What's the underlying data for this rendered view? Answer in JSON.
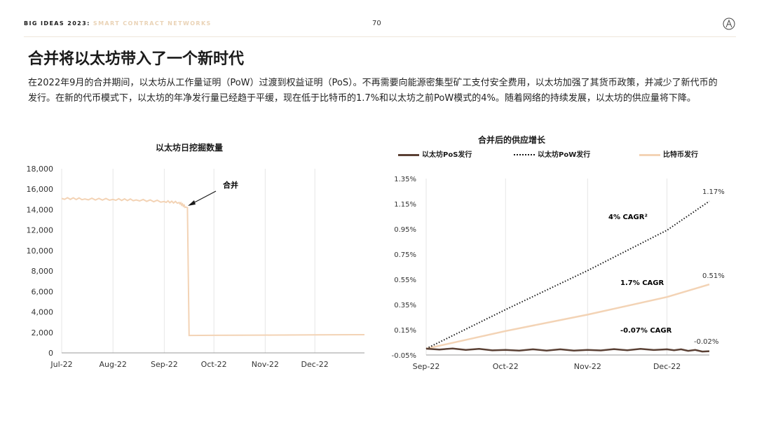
{
  "header": {
    "brand": "BIG IDEAS 2023:",
    "section": "SMART CONTRACT NETWORKS",
    "page_number": "70",
    "logo_icon": "ark-logo-icon"
  },
  "title": "合并将以太坊带入了一个新时代",
  "body": "在2022年9月的合并期间，以太坊从工作量证明（PoW）过渡到权益证明（PoS）。不再需要向能源密集型矿工支付安全费用，以太坊加强了其货币政策，并减少了新代币的发行。在新的代币模式下，以太坊的年净发行量已经趋于平缓，现在低于比特币的1.7%和以太坊之前PoW模式的4%。随着网络的持续发展，以太坊的供应量将下降。",
  "colors": {
    "accent": "#f3d3b5",
    "pos": "#5a4034",
    "pow": "#1a1a1a",
    "grid": "#e6e6e6"
  },
  "chart_data": [
    {
      "type": "line",
      "title": "以太坊日挖掘数量",
      "x": [
        "2022-07-01",
        "2022-07-15",
        "2022-08-01",
        "2022-08-15",
        "2022-09-01",
        "2022-09-10",
        "2022-09-14",
        "2022-09-15",
        "2022-09-16",
        "2022-10-01",
        "2022-11-01",
        "2022-12-01",
        "2022-12-31"
      ],
      "series": [
        {
          "values": [
            15100,
            15050,
            15000,
            14950,
            14800,
            14700,
            14250,
            14200,
            1700,
            1720,
            1740,
            1760,
            1780
          ]
        }
      ],
      "x_ticks": [
        "Jul-22",
        "Aug-22",
        "Sep-22",
        "Oct-22",
        "Nov-22",
        "Dec-22"
      ],
      "y_ticks": [
        "0",
        "2,000",
        "4,000",
        "6,000",
        "8,000",
        "10,000",
        "12,000",
        "14,000",
        "16,000",
        "18,000"
      ],
      "ylim": [
        0,
        18000
      ],
      "annotation": "合并",
      "grid": "vertical"
    },
    {
      "type": "line",
      "title": "合并后的供应增长",
      "legend": [
        "以太坊PoS发行",
        "以太坊PoW发行",
        "比特币发行"
      ],
      "legend_position": "top",
      "x": [
        "2022-09-15",
        "2022-10-15",
        "2022-11-15",
        "2022-12-15",
        "2022-12-31"
      ],
      "series": [
        {
          "name": "以太坊PoS发行",
          "values": [
            0.0,
            -0.01,
            -0.01,
            -0.005,
            -0.02
          ]
        },
        {
          "name": "以太坊PoW发行",
          "values": [
            0.0,
            0.31,
            0.62,
            0.94,
            1.17
          ]
        },
        {
          "name": "比特币发行",
          "values": [
            0.0,
            0.14,
            0.27,
            0.41,
            0.51
          ]
        }
      ],
      "x_ticks": [
        "Sep-22",
        "Oct-22",
        "Nov-22",
        "Dec-22"
      ],
      "y_ticks": [
        "-0.05%",
        "0.15%",
        "0.35%",
        "0.55%",
        "0.75%",
        "0.95%",
        "1.15%",
        "1.35%"
      ],
      "ylim": [
        -0.05,
        1.35
      ],
      "end_labels": [
        "1.17%",
        "0.51%",
        "-0.02%"
      ],
      "annotations": [
        "4% CAGR²",
        "1.7% CAGR",
        "-0.07% CAGR"
      ],
      "grid": "vertical"
    }
  ]
}
